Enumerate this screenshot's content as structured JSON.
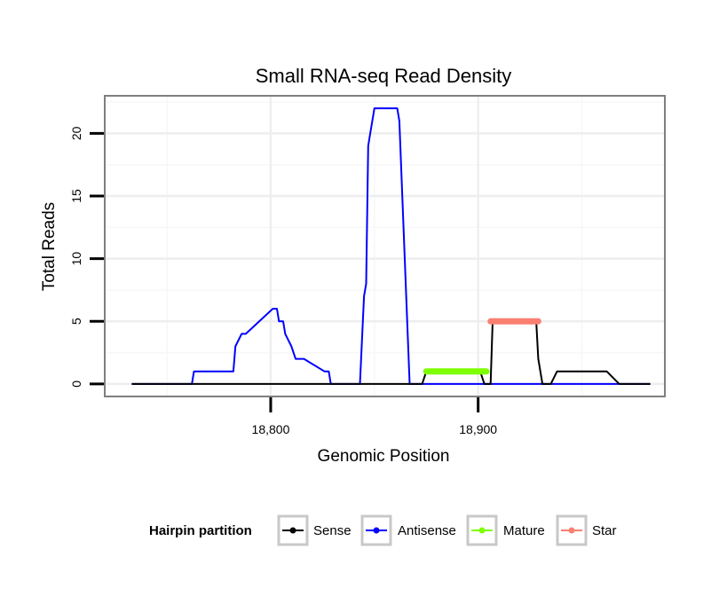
{
  "chart_data": {
    "type": "line",
    "title": "Small RNA-seq Read Density",
    "xlabel": "Genomic Position",
    "ylabel": "Total Reads",
    "xlim": [
      18720,
      18990
    ],
    "ylim": [
      -1,
      23
    ],
    "x_ticks": [
      {
        "value": 18800,
        "label": "18,800"
      },
      {
        "value": 18900,
        "label": "18,900"
      }
    ],
    "y_ticks": [
      {
        "value": 0,
        "label": "0"
      },
      {
        "value": 5,
        "label": "5"
      },
      {
        "value": 10,
        "label": "10"
      },
      {
        "value": 15,
        "label": "15"
      },
      {
        "value": 20,
        "label": "20"
      }
    ],
    "grid": true,
    "legend": {
      "title": "Hairpin partition",
      "position": "bottom",
      "entries": [
        {
          "name": "Sense",
          "color": "#000000"
        },
        {
          "name": "Antisense",
          "color": "#0000ff"
        },
        {
          "name": "Mature",
          "color": "#7fff00"
        },
        {
          "name": "Star",
          "color": "#fa8072"
        }
      ]
    },
    "series": [
      {
        "name": "Sense",
        "color": "#000000",
        "x": [
          18733,
          18873,
          18875,
          18877,
          18901,
          18903,
          18904,
          18906,
          18907,
          18928,
          18929,
          18931,
          18935,
          18938,
          18950,
          18955,
          18962,
          18968,
          18983
        ],
        "y": [
          0,
          0,
          1,
          1,
          1,
          0,
          0,
          0,
          5,
          5,
          2,
          0,
          0,
          1,
          1,
          1,
          1,
          0,
          0
        ]
      },
      {
        "name": "Antisense",
        "color": "#0000ff",
        "x": [
          18733,
          18762,
          18763,
          18775,
          18777,
          18778,
          18782,
          18783,
          18786,
          18788,
          18801,
          18802,
          18803,
          18804,
          18805,
          18806,
          18807,
          18810,
          18812,
          18814,
          18816,
          18826,
          18828,
          18829,
          18831,
          18843,
          18845,
          18846,
          18847,
          18848,
          18850,
          18858,
          18859,
          18861,
          18862,
          18867,
          18869,
          18871,
          18873,
          18874,
          18876,
          18877,
          18878,
          18880,
          18882,
          18885,
          18893,
          18896,
          18898,
          18900,
          18901,
          18904,
          18907,
          18909,
          18911,
          18917,
          18920,
          18921,
          18928,
          18933,
          18934,
          18935,
          18940,
          18948,
          18950,
          18955,
          18961,
          18963,
          18965,
          18975,
          18983
        ],
        "y": [
          0,
          0,
          1,
          1,
          1,
          1,
          1,
          3,
          4,
          4,
          6,
          6,
          6,
          5,
          5,
          5,
          4,
          3,
          2,
          2,
          2,
          1,
          1,
          0,
          0,
          0,
          7,
          8,
          19,
          20,
          22,
          22,
          22,
          22,
          21,
          0,
          0,
          0,
          0,
          0,
          0,
          0,
          0,
          0,
          0,
          0,
          0,
          0,
          0,
          0,
          0,
          0,
          0,
          0,
          0,
          0,
          0,
          0,
          0,
          0,
          0,
          0,
          0,
          0,
          0,
          0,
          0,
          0,
          0,
          0,
          0
        ]
      },
      {
        "name": "Mature",
        "color": "#7fff00",
        "x": [
          18875,
          18904
        ],
        "y": [
          1,
          1
        ]
      },
      {
        "name": "Star",
        "color": "#fa8072",
        "x": [
          18906,
          18929
        ],
        "y": [
          5,
          5
        ]
      }
    ]
  }
}
